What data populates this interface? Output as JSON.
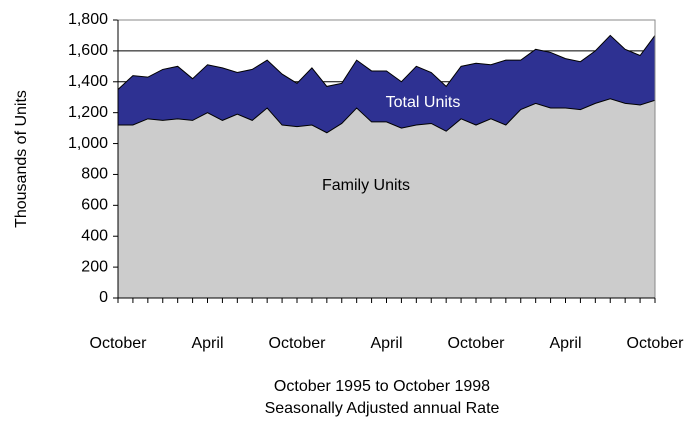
{
  "chart_data": {
    "type": "area",
    "categories": [
      "October",
      null,
      null,
      null,
      null,
      null,
      "April",
      null,
      null,
      null,
      null,
      null,
      "October",
      null,
      null,
      null,
      null,
      null,
      "April",
      null,
      null,
      null,
      null,
      null,
      "October",
      null,
      null,
      null,
      null,
      null,
      "April",
      null,
      null,
      null,
      null,
      null,
      "October"
    ],
    "series": [
      {
        "name": "Total Units",
        "color": "#2e3192",
        "values": [
          1350,
          1440,
          1430,
          1480,
          1500,
          1420,
          1510,
          1490,
          1460,
          1480,
          1540,
          1450,
          1390,
          1490,
          1370,
          1390,
          1540,
          1470,
          1470,
          1400,
          1500,
          1460,
          1370,
          1500,
          1520,
          1510,
          1540,
          1540,
          1610,
          1590,
          1550,
          1530,
          1600,
          1700,
          1610,
          1570,
          1700
        ]
      },
      {
        "name": "Family Units",
        "color": "#cccccc",
        "values": [
          1120,
          1120,
          1160,
          1150,
          1160,
          1150,
          1200,
          1150,
          1190,
          1150,
          1230,
          1120,
          1110,
          1120,
          1070,
          1130,
          1230,
          1140,
          1140,
          1100,
          1120,
          1130,
          1080,
          1160,
          1120,
          1160,
          1120,
          1220,
          1260,
          1230,
          1230,
          1220,
          1260,
          1290,
          1260,
          1250,
          1280
        ]
      }
    ],
    "ylim": [
      0,
      1800
    ],
    "yticks": [
      0,
      200,
      400,
      600,
      800,
      {
        "value": 1000,
        "label": "1,000"
      },
      {
        "value": 1200,
        "label": "1,200"
      },
      {
        "value": 1400,
        "label": "1,400"
      },
      {
        "value": 1600,
        "label": "1,600"
      },
      {
        "value": 1800,
        "label": "1,800"
      }
    ],
    "grid": true,
    "y_axis_label": "Thousands of Units",
    "x_axis_label": [
      "October 1995 to October 1998",
      "Seasonally Adjusted annual Rate"
    ]
  }
}
